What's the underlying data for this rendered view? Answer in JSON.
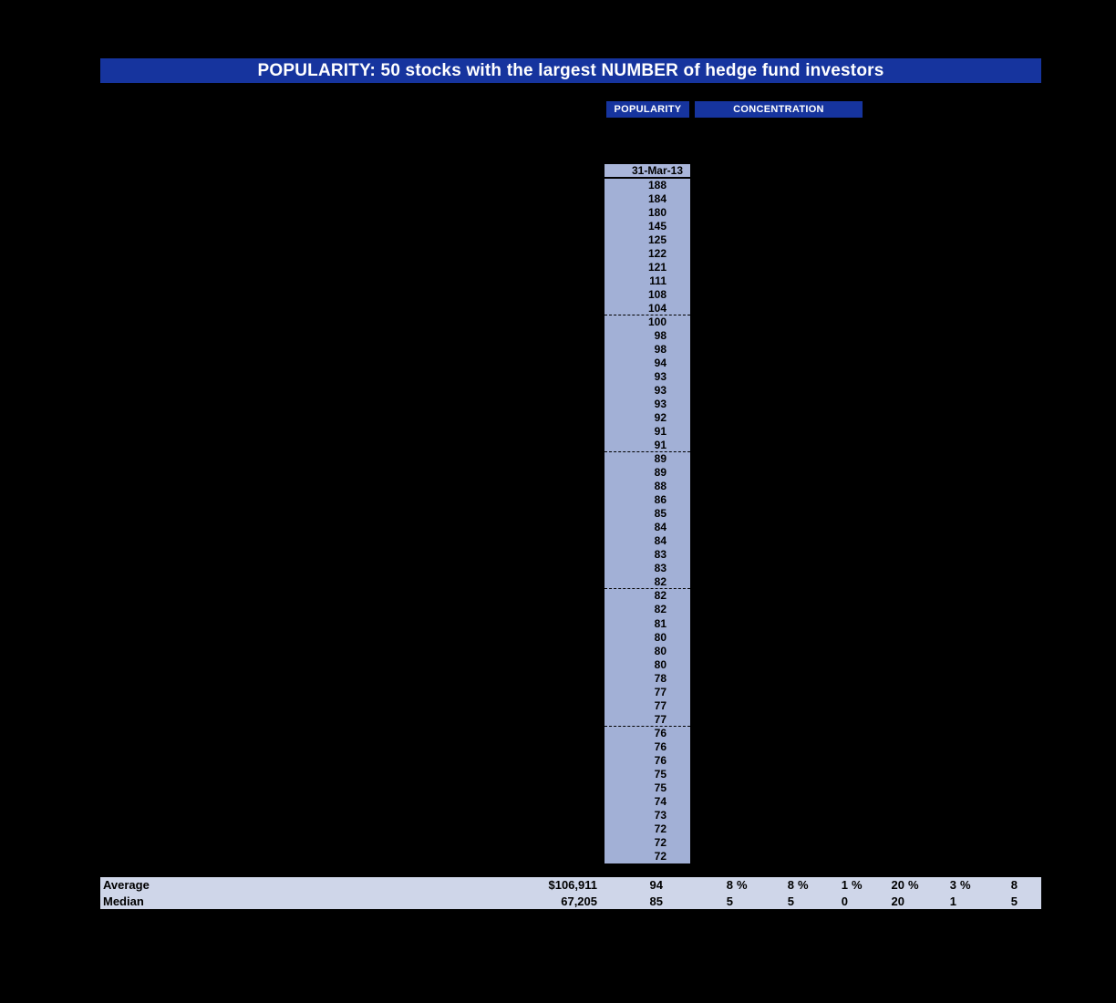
{
  "banner": {
    "title": "POPULARITY: 50 stocks with the largest NUMBER of hedge fund investors"
  },
  "tabs": [
    {
      "label": "POPULARITY"
    },
    {
      "label": "CONCENTRATION"
    }
  ],
  "column": {
    "header": "31-Mar-13",
    "group_size": 10,
    "values": [
      188,
      184,
      180,
      145,
      125,
      122,
      121,
      111,
      108,
      104,
      100,
      98,
      98,
      94,
      93,
      93,
      93,
      92,
      91,
      91,
      89,
      89,
      88,
      86,
      85,
      84,
      84,
      83,
      83,
      82,
      82,
      82,
      81,
      80,
      80,
      80,
      78,
      77,
      77,
      77,
      76,
      76,
      76,
      75,
      75,
      74,
      73,
      72,
      72,
      72
    ]
  },
  "summary": {
    "rows": [
      {
        "label": "Average",
        "cells": [
          {
            "v": "$106,911",
            "u": ""
          },
          {
            "v": "94",
            "u": ""
          },
          {
            "v": "8",
            "u": "%"
          },
          {
            "v": "8",
            "u": "%"
          },
          {
            "v": "1",
            "u": "%"
          },
          {
            "v": "20",
            "u": "%"
          },
          {
            "v": "3",
            "u": "%"
          },
          {
            "v": "8",
            "u": ""
          }
        ]
      },
      {
        "label": "Median",
        "cells": [
          {
            "v": "67,205",
            "u": ""
          },
          {
            "v": "85",
            "u": ""
          },
          {
            "v": "5",
            "u": ""
          },
          {
            "v": "5",
            "u": ""
          },
          {
            "v": "0",
            "u": ""
          },
          {
            "v": "20",
            "u": ""
          },
          {
            "v": "1",
            "u": ""
          },
          {
            "v": "5",
            "u": ""
          }
        ]
      }
    ]
  },
  "colors": {
    "background": "#000000",
    "banner_blue": "#16349e",
    "column_bg": "#a2b0d6",
    "header_bg": "#aab6da",
    "summary_bg": "#cfd6e9",
    "text_dark": "#000000",
    "text_light": "#ffffff"
  }
}
